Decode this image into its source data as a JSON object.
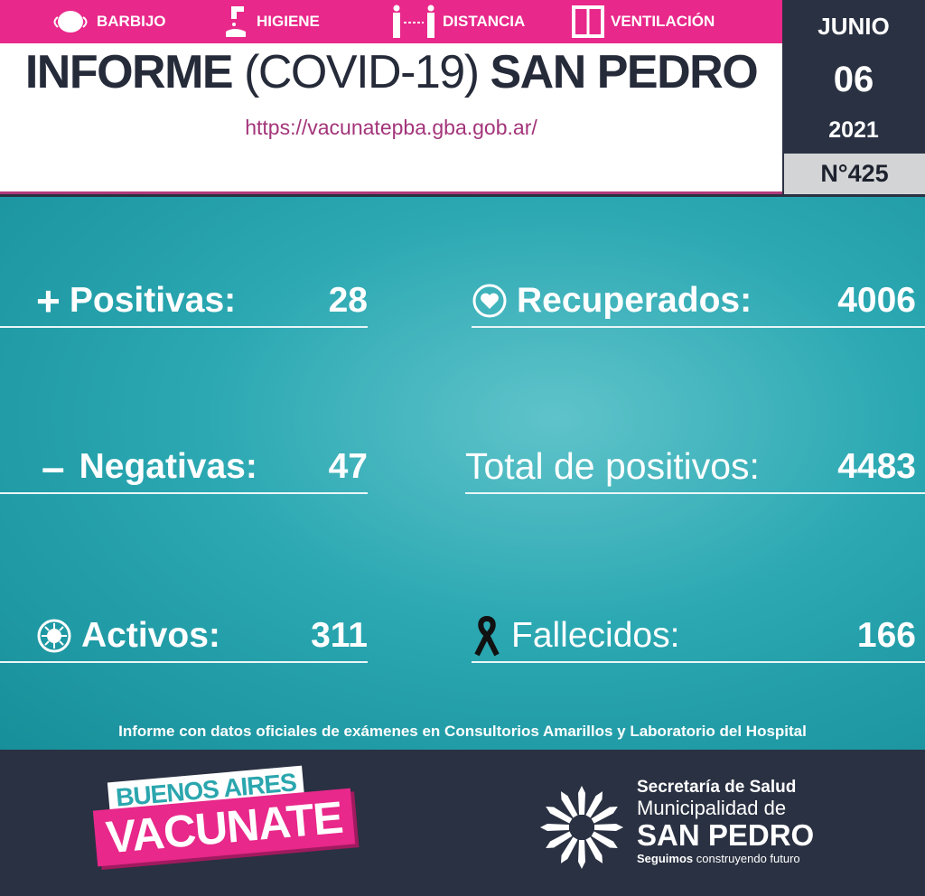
{
  "tips": [
    {
      "icon": "mask-icon",
      "label": "BARBIJO"
    },
    {
      "icon": "handwash-icon",
      "label": "HIGIENE"
    },
    {
      "icon": "distance-icon",
      "label": "DISTANCIA"
    },
    {
      "icon": "window-icon",
      "label": "VENTILACIÓN"
    }
  ],
  "header": {
    "title_bold1": "INFORME",
    "title_thin": "(COVID-19)",
    "title_bold2": "SAN PEDRO",
    "url": "https://vacunatepba.gba.gob.ar/"
  },
  "date": {
    "month": "JUNIO",
    "day": "06",
    "year": "2021",
    "number": "N°425"
  },
  "stats": {
    "positivas": {
      "label": "Positivas:",
      "value": "28",
      "icon": "plus-icon"
    },
    "negativas": {
      "label": "Negativas:",
      "value": "47",
      "icon": "minus-icon"
    },
    "activos": {
      "label": "Activos:",
      "value": "311",
      "icon": "virus-icon"
    },
    "recuperados": {
      "label": "Recuperados:",
      "value": "4006",
      "icon": "heart-icon"
    },
    "total": {
      "label": "Total de positivos:",
      "value": "4483"
    },
    "fallecidos": {
      "label": "Fallecidos:",
      "value": "166",
      "icon": "mourning-ribbon-icon"
    }
  },
  "note": "Informe con datos oficiales de exámenes en Consultorios Amarillos y Laboratorio del Hospital",
  "footer": {
    "campaign_top": "BUENOS AIRES",
    "campaign_bottom": "VACUNATE",
    "muni_line1": "Secretaría de Salud",
    "muni_line2": "Municipalidad de",
    "muni_line3": "SAN PEDRO",
    "muni_slogan_bold": "Seguimos",
    "muni_slogan": "construyendo futuro"
  },
  "colors": {
    "pink": "#e8288a",
    "navy": "#2a3142",
    "teal": "#2ba8b2"
  }
}
